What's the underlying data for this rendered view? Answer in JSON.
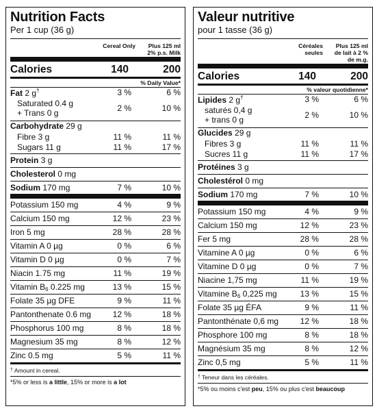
{
  "left": {
    "title": "Nutrition Facts",
    "serving": "Per 1 cup (36 g)",
    "col1": [
      "Cereal Only"
    ],
    "col2": [
      "Plus 125 ml",
      "2% p.s. Milk"
    ],
    "calories_label": "Calories",
    "calories_v1": "140",
    "calories_v2": "200",
    "dv_header": "% Daily Value*",
    "fat_label": "Fat",
    "fat_amount": "2 g",
    "fat_v1": "3 %",
    "fat_v2": "6 %",
    "sat_label": "Saturated 0.4 g",
    "trans_label": "+ Trans 0 g",
    "sat_v1": "2 %",
    "sat_v2": "10 %",
    "carb_label": "Carbohydrate",
    "carb_amount": "29 g",
    "fibre_label": "Fibre 3 g",
    "fibre_v1": "11 %",
    "fibre_v2": "11 %",
    "sugars_label": "Sugars 11 g",
    "sugars_v1": "11 %",
    "sugars_v2": "17 %",
    "protein_label": "Protein",
    "protein_amount": "3 g",
    "chol_label": "Cholesterol",
    "chol_amount": "0 mg",
    "sodium_label": "Sodium",
    "sodium_amount": "170 mg",
    "sodium_v1": "7 %",
    "sodium_v2": "10 %",
    "minerals": [
      {
        "label": "Potassium 150 mg",
        "v1": "4 %",
        "v2": "9 %"
      },
      {
        "label": "Calcium 150 mg",
        "v1": "12 %",
        "v2": "23 %"
      },
      {
        "label": "Iron 5 mg",
        "v1": "28 %",
        "v2": "28 %"
      },
      {
        "label": "Vitamin A 0 µg",
        "v1": "0 %",
        "v2": "6 %"
      },
      {
        "label": "Vitamin D 0 µg",
        "v1": "0 %",
        "v2": "7 %"
      },
      {
        "label": "Niacin 1.75 mg",
        "v1": "11 %",
        "v2": "19 %"
      },
      {
        "label": "Vitamin B",
        "sub": "6",
        "label_after": " 0.225 mg",
        "v1": "13 %",
        "v2": "15 %"
      },
      {
        "label": "Folate 35 µg DFE",
        "v1": "9 %",
        "v2": "11 %"
      },
      {
        "label": "Pantonthenate 0.6 mg",
        "v1": "12 %",
        "v2": "18 %"
      },
      {
        "label": "Phosphorus 100 mg",
        "v1": "8 %",
        "v2": "18 %"
      },
      {
        "label": "Magnesium 35 mg",
        "v1": "8 %",
        "v2": "12 %"
      },
      {
        "label": "Zinc 0.5 mg",
        "v1": "5 %",
        "v2": "11 %"
      }
    ],
    "footnote1": "Amount in cereal.",
    "footnote2_a": "*5% or less is ",
    "footnote2_b": "a little",
    "footnote2_c": ", 15% or more is ",
    "footnote2_d": "a lot"
  },
  "right": {
    "title": "Valeur nutritive",
    "serving": "pour 1 tasse (36 g)",
    "col1": [
      "Céréales",
      "seules"
    ],
    "col2": [
      "Plus 125 ml",
      "de lait à 2 %",
      "de m.g."
    ],
    "calories_label": "Calories",
    "calories_v1": "140",
    "calories_v2": "200",
    "dv_header": "% valeur quotidienne*",
    "fat_label": "Lipides",
    "fat_amount": "2 g",
    "fat_v1": "3 %",
    "fat_v2": "6 %",
    "sat_label": "saturés 0,4 g",
    "trans_label": "+ trans 0 g",
    "sat_v1": "2 %",
    "sat_v2": "10 %",
    "carb_label": "Glucides",
    "carb_amount": "29 g",
    "fibre_label": "Fibres 3 g",
    "fibre_v1": "11 %",
    "fibre_v2": "11 %",
    "sugars_label": "Sucres 11 g",
    "sugars_v1": "11 %",
    "sugars_v2": "17 %",
    "protein_label": "Protéines",
    "protein_amount": "3 g",
    "chol_label": "Cholestérol",
    "chol_amount": "0 mg",
    "sodium_label": "Sodium",
    "sodium_amount": "170 mg",
    "sodium_v1": "7 %",
    "sodium_v2": "10 %",
    "minerals": [
      {
        "label": "Potassium 150 mg",
        "v1": "4 %",
        "v2": "9 %"
      },
      {
        "label": "Calcium 150 mg",
        "v1": "12 %",
        "v2": "23 %"
      },
      {
        "label": "Fer 5 mg",
        "v1": "28 %",
        "v2": "28 %"
      },
      {
        "label": "Vitamine A 0 µg",
        "v1": "0 %",
        "v2": "6 %"
      },
      {
        "label": "Vitamine D 0 µg",
        "v1": "0 %",
        "v2": "7 %"
      },
      {
        "label": "Niacine 1,75 mg",
        "v1": "11 %",
        "v2": "19 %"
      },
      {
        "label": "Vitamine B",
        "sub": "6",
        "label_after": " 0,225 mg",
        "v1": "13 %",
        "v2": "15 %"
      },
      {
        "label": "Folate 35 µg ÉFA",
        "v1": "9 %",
        "v2": "11 %"
      },
      {
        "label": "Pantonthénate 0,6 mg",
        "v1": "12 %",
        "v2": "18 %"
      },
      {
        "label": "Phosphore 100 mg",
        "v1": "8 %",
        "v2": "18 %"
      },
      {
        "label": "Magnésium 35 mg",
        "v1": "8 %",
        "v2": "12 %"
      },
      {
        "label": "Zinc 0,5 mg",
        "v1": "5 %",
        "v2": "11 %"
      }
    ],
    "footnote1": "Teneur dans les céréales.",
    "footnote2_a": "*5% ou moins c'est ",
    "footnote2_b": "peu",
    "footnote2_c": ", 15% ou plus c'est ",
    "footnote2_d": "beaucoup"
  }
}
